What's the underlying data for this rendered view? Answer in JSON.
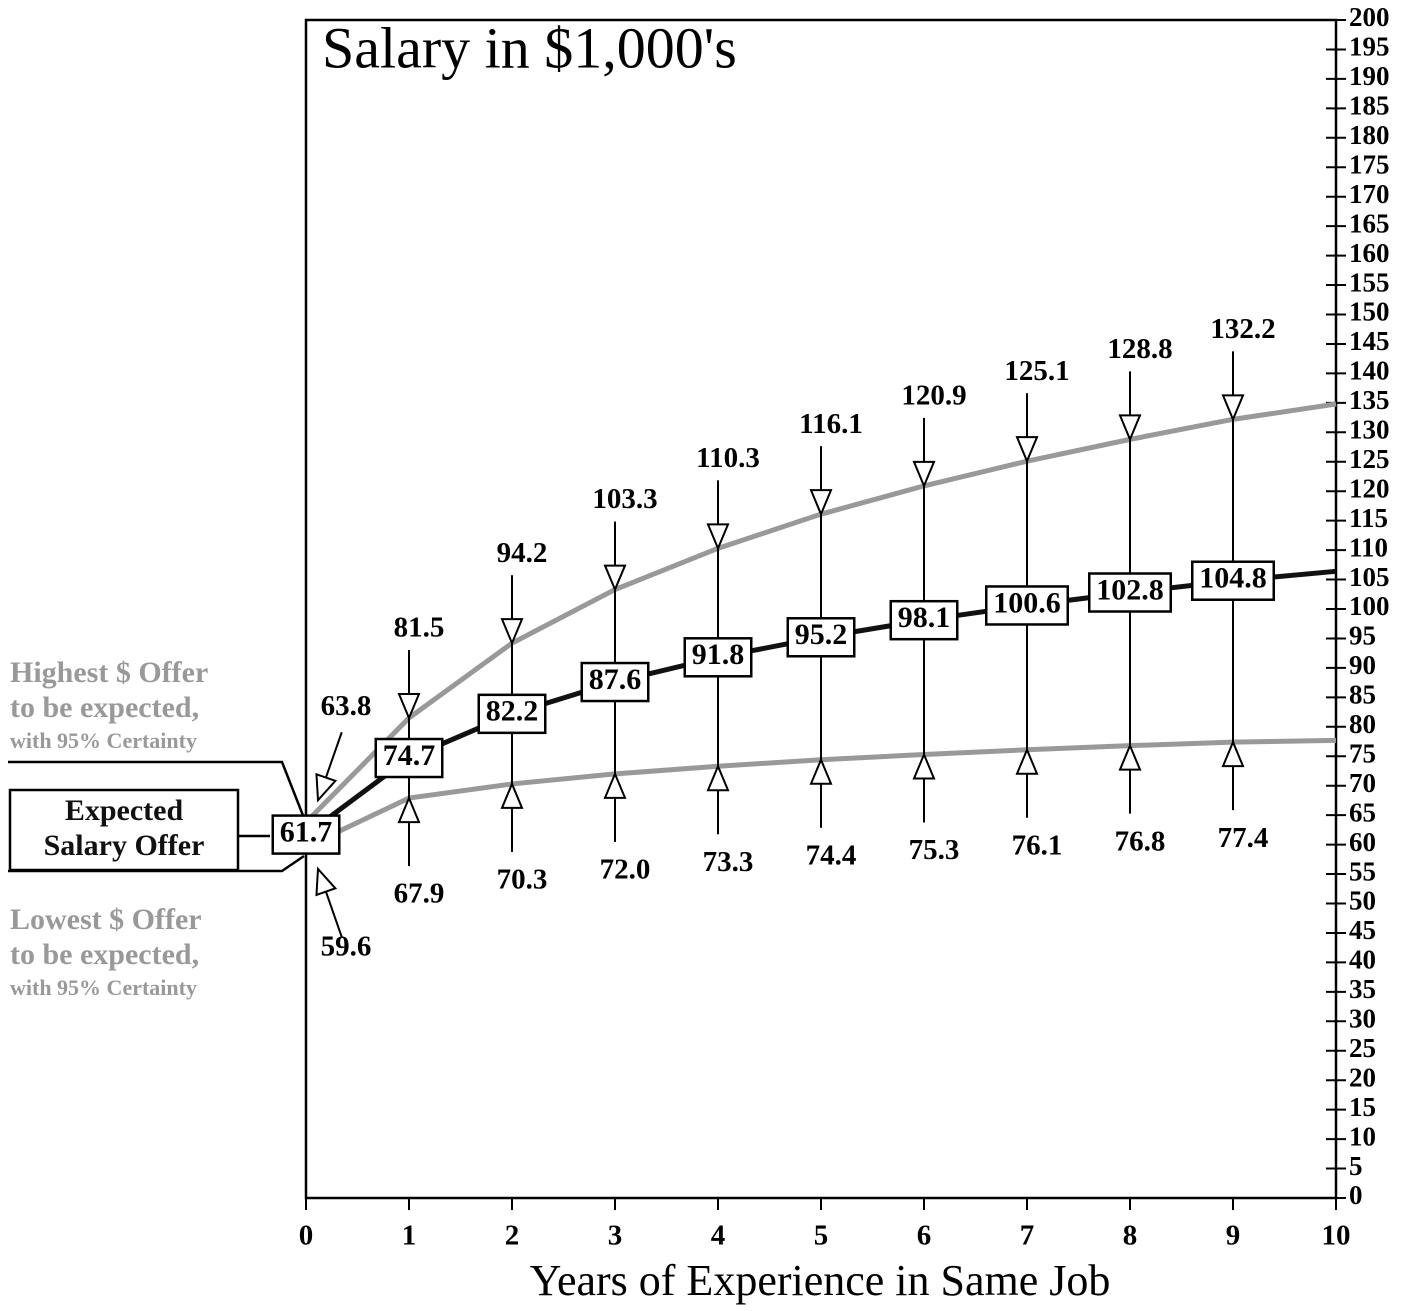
{
  "chart_data": {
    "type": "line",
    "title": "Salary in $1,000's",
    "x_label": "Years of Experience in Same Job",
    "x": [
      0,
      1,
      2,
      3,
      4,
      5,
      6,
      7,
      8,
      9,
      10
    ],
    "xlim": [
      0,
      10
    ],
    "xticks": [
      0,
      1,
      2,
      3,
      4,
      5,
      6,
      7,
      8,
      9,
      10
    ],
    "ylim": [
      0,
      200
    ],
    "yticks": [
      0,
      5,
      10,
      15,
      20,
      25,
      30,
      35,
      40,
      45,
      50,
      55,
      60,
      65,
      70,
      75,
      80,
      85,
      90,
      95,
      100,
      105,
      110,
      115,
      120,
      125,
      130,
      135,
      140,
      145,
      150,
      155,
      160,
      165,
      170,
      175,
      180,
      185,
      190,
      195,
      200
    ],
    "series": [
      {
        "color": "#111111",
        "values": [
          61.7,
          74.7,
          82.2,
          87.6,
          91.8,
          95.2,
          98.1,
          100.6,
          102.8,
          104.8,
          106.4
        ],
        "value_labels": [
          "61.7",
          "74.7",
          "82.2",
          "87.6",
          "91.8",
          "95.2",
          "98.1",
          "100.6",
          "102.8",
          "104.8",
          null
        ]
      },
      {
        "color": "#999999",
        "values": [
          63.8,
          81.5,
          94.2,
          103.3,
          110.3,
          116.1,
          120.9,
          125.1,
          128.8,
          132.2,
          134.8
        ],
        "value_labels": [
          "63.8",
          "81.5",
          "94.2",
          "103.3",
          "110.3",
          "116.1",
          "120.9",
          "125.1",
          "128.8",
          "132.2",
          null
        ]
      },
      {
        "color": "#999999",
        "values": [
          59.6,
          67.9,
          70.3,
          72.0,
          73.3,
          74.4,
          75.3,
          76.1,
          76.8,
          77.4,
          77.7
        ],
        "value_labels": [
          "59.6",
          "67.9",
          "70.3",
          "72.0",
          "73.3",
          "74.4",
          "75.3",
          "76.1",
          "76.8",
          "77.4",
          null
        ]
      }
    ],
    "annotations": {
      "highest": [
        "Highest $ Offer",
        "to be expected,",
        "with 95% Certainty"
      ],
      "expected": [
        "Expected",
        "Salary Offer"
      ],
      "lowest": [
        "Lowest $ Offer",
        "to be expected,",
        "with 95% Certainty"
      ]
    }
  }
}
